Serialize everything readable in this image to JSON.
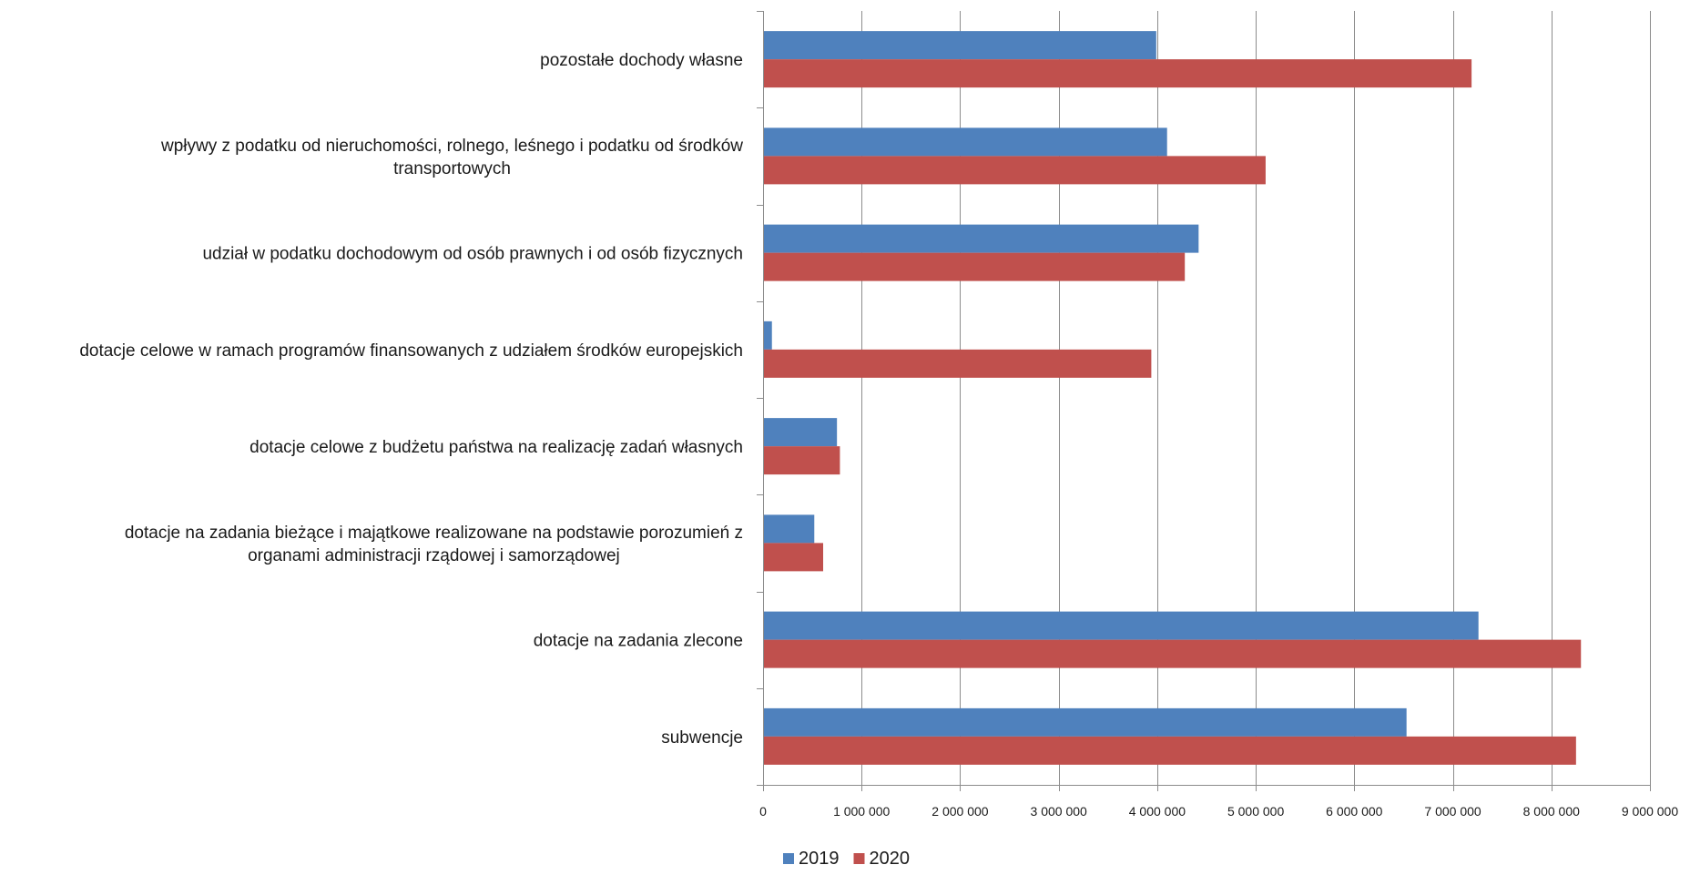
{
  "chart_data": {
    "type": "bar",
    "orientation": "horizontal",
    "categories": [
      [
        "pozostałe dochody własne"
      ],
      [
        "wpływy z podatku od nieruchomości, rolnego, leśnego i podatku od środków",
        "transportowych"
      ],
      [
        "udział w podatku dochodowym od osób prawnych i od osób fizycznych"
      ],
      [
        "dotacje celowe w ramach programów finansowanych z udziałem środków europejskich"
      ],
      [
        "dotacje celowe z budżetu państwa na realizację zadań własnych"
      ],
      [
        "dotacje na zadania bieżące i majątkowe realizowane na podstawie porozumień z",
        "organami administracji rządowej i samorządowej"
      ],
      [
        "dotacje na zadania zlecone"
      ],
      [
        "subwencje"
      ]
    ],
    "series": [
      {
        "name": "2019",
        "color": "#4f81bd",
        "values": [
          3990000,
          4100000,
          4420000,
          90000,
          750000,
          520000,
          7260000,
          6530000
        ]
      },
      {
        "name": "2020",
        "color": "#c0504d",
        "values": [
          7190000,
          5100000,
          4280000,
          3940000,
          780000,
          610000,
          8300000,
          8250000
        ]
      }
    ],
    "xlim": [
      0,
      9000000
    ],
    "xticks": [
      0,
      1000000,
      2000000,
      3000000,
      4000000,
      5000000,
      6000000,
      7000000,
      8000000,
      9000000
    ],
    "xtick_labels": [
      "0",
      "1 000 000",
      "2 000 000",
      "3 000 000",
      "4 000 000",
      "5 000 000",
      "6 000 000",
      "7 000 000",
      "8 000 000",
      "9 000 000"
    ],
    "grid": "vertical",
    "legend_position": "bottom"
  }
}
